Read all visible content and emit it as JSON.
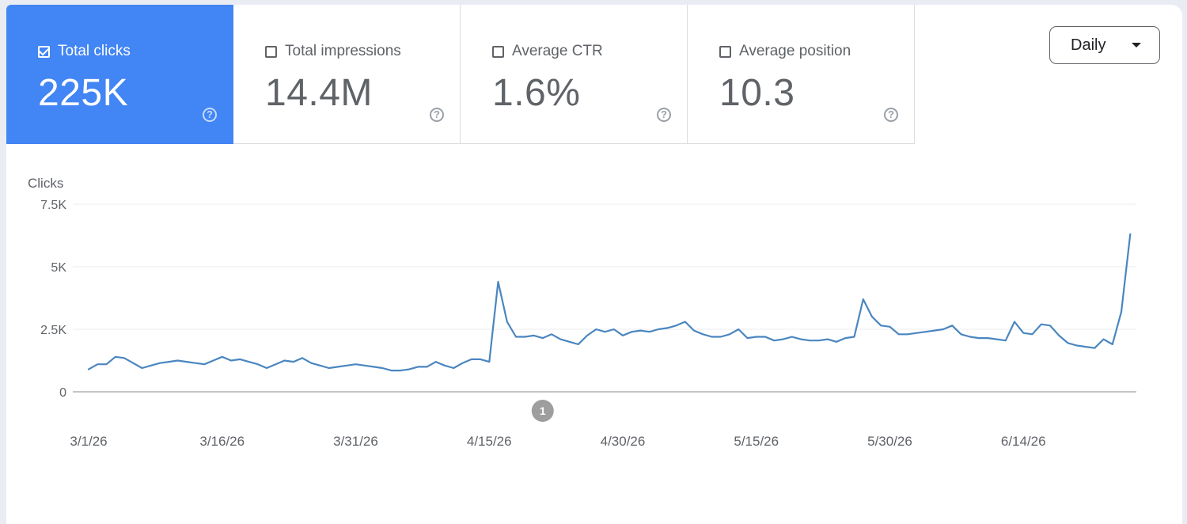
{
  "metrics": [
    {
      "label": "Total clicks",
      "value": "225K",
      "selected": true
    },
    {
      "label": "Total impressions",
      "value": "14.4M",
      "selected": false
    },
    {
      "label": "Average CTR",
      "value": "1.6%",
      "selected": false
    },
    {
      "label": "Average position",
      "value": "10.3",
      "selected": false
    }
  ],
  "help_icon": "question-circle-icon",
  "period_dropdown": {
    "label": "Daily",
    "icon": "caret-down-icon"
  },
  "colors": {
    "accent": "#4285f4",
    "line": "#4a86c0",
    "annotation": "#9e9e9e"
  },
  "chart_data": {
    "type": "line",
    "ylabel": "Clicks",
    "ylim": [
      0,
      7500
    ],
    "y_ticks": [
      "7.5K",
      "5K",
      "2.5K",
      "0"
    ],
    "y_tick_values": [
      7500,
      5000,
      2500,
      0
    ],
    "x_tick_labels": [
      "3/1/26",
      "3/16/26",
      "3/31/26",
      "4/15/26",
      "4/30/26",
      "5/15/26",
      "5/30/26",
      "6/14/26"
    ],
    "x_tick_days": [
      0,
      15,
      30,
      45,
      60,
      75,
      90,
      105
    ],
    "annotation": {
      "label": "1",
      "day": 51
    },
    "series": [
      {
        "values": [
          900,
          1100,
          1100,
          1400,
          1350,
          1150,
          950,
          1050,
          1150,
          1200,
          1250,
          1200,
          1150,
          1100,
          1250,
          1400,
          1250,
          1300,
          1200,
          1100,
          950,
          1100,
          1250,
          1200,
          1350,
          1150,
          1050,
          950,
          1000,
          1050,
          1100,
          1050,
          1000,
          950,
          850,
          850,
          900,
          1000,
          1000,
          1200,
          1050,
          950,
          1150,
          1300,
          1300,
          1200,
          4400,
          2800,
          2200,
          2200,
          2250,
          2150,
          2300,
          2100,
          2000,
          1900,
          2250,
          2500,
          2400,
          2500,
          2250,
          2400,
          2450,
          2400,
          2500,
          2550,
          2650,
          2800,
          2450,
          2300,
          2200,
          2200,
          2300,
          2500,
          2150,
          2200,
          2200,
          2050,
          2100,
          2200,
          2100,
          2050,
          2050,
          2100,
          2000,
          2150,
          2200,
          3700,
          3000,
          2650,
          2600,
          2300,
          2300,
          2350,
          2400,
          2450,
          2500,
          2650,
          2300,
          2200,
          2150,
          2150,
          2100,
          2050,
          2800,
          2350,
          2300,
          2700,
          2650,
          2250,
          1950,
          1850,
          1800,
          1750,
          2100,
          1900,
          3200,
          6300
        ]
      }
    ]
  }
}
